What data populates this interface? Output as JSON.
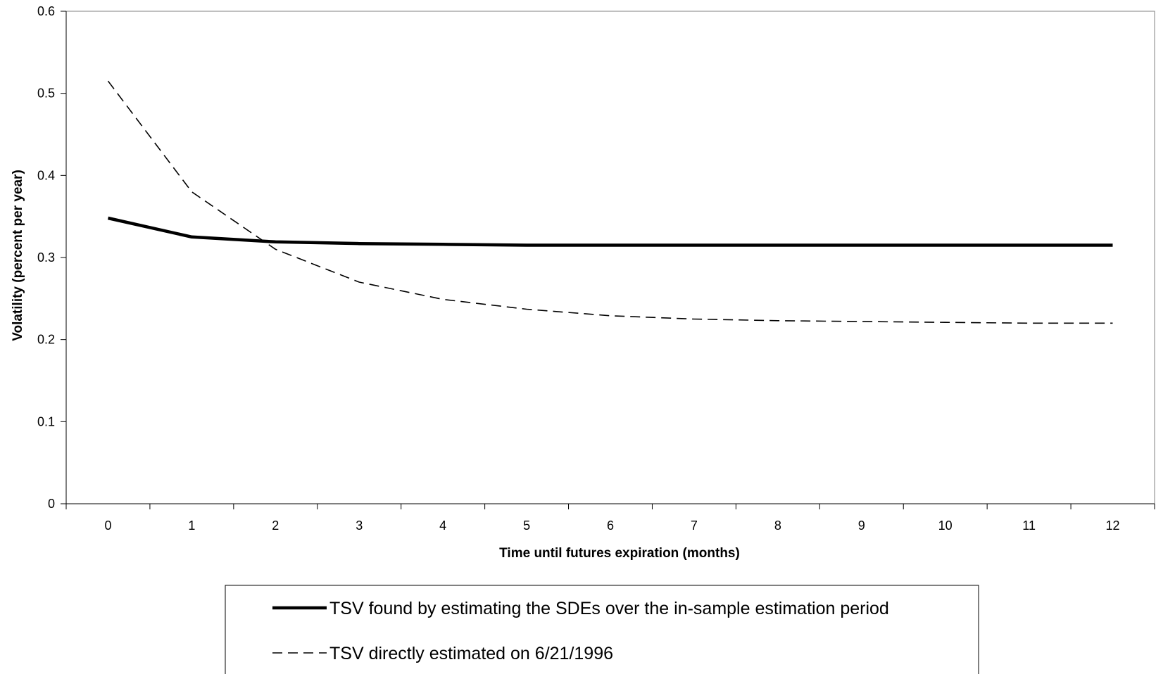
{
  "chart_data": {
    "type": "line",
    "title": "",
    "xlabel": "Time until futures expiration (months)",
    "ylabel": "Volatility (percent per year)",
    "xlim": [
      -0.5,
      12.5
    ],
    "ylim": [
      0,
      0.6
    ],
    "x_ticks": [
      0,
      1,
      2,
      3,
      4,
      5,
      6,
      7,
      8,
      9,
      10,
      11,
      12
    ],
    "x_tick_labels": [
      "0",
      "1",
      "2",
      "3",
      "4",
      "5",
      "6",
      "7",
      "8",
      "9",
      "10",
      "11",
      "12"
    ],
    "y_ticks": [
      0,
      0.1,
      0.2,
      0.3,
      0.4,
      0.5,
      0.6
    ],
    "y_tick_labels": [
      "0",
      "0.1",
      "0.2",
      "0.3",
      "0.4",
      "0.5",
      "0.6"
    ],
    "grid": false,
    "legend_position": "bottom-center",
    "x": [
      0,
      1,
      2,
      3,
      4,
      5,
      6,
      7,
      8,
      9,
      10,
      11,
      12
    ],
    "series": [
      {
        "name": "TSV found by estimating the SDEs over the in-sample estimation period",
        "style": "solid",
        "color": "#000000",
        "values": [
          0.348,
          0.325,
          0.319,
          0.317,
          0.316,
          0.315,
          0.315,
          0.315,
          0.315,
          0.315,
          0.315,
          0.315,
          0.315
        ]
      },
      {
        "name": "TSV directly estimated on 6/21/1996",
        "style": "dashed",
        "color": "#000000",
        "values": [
          0.515,
          0.38,
          0.31,
          0.27,
          0.249,
          0.237,
          0.229,
          0.225,
          0.223,
          0.222,
          0.221,
          0.22,
          0.22
        ]
      }
    ]
  }
}
